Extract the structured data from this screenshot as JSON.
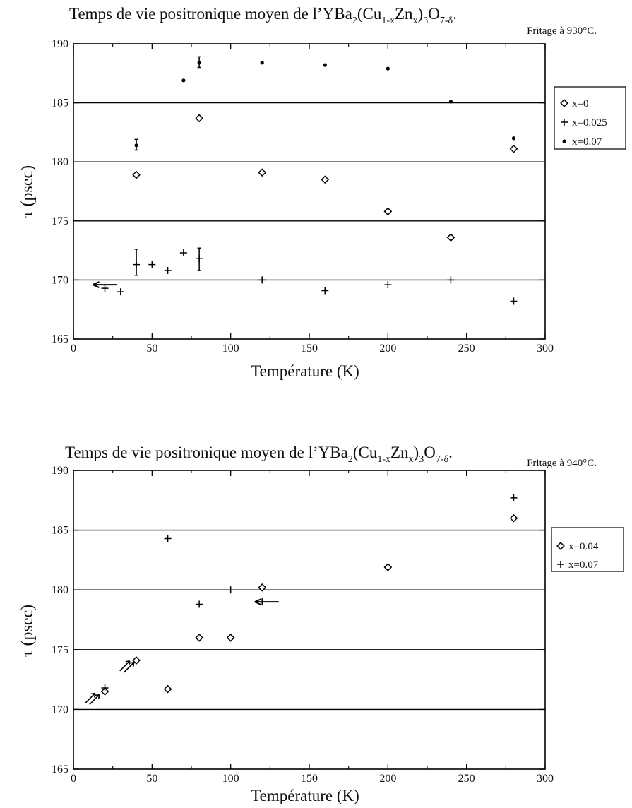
{
  "charts": [
    {
      "title_main": "Temps de vie positronique moyen de l’YBa",
      "title_sub2": "2",
      "title_mid": "(Cu",
      "title_sub1x": "1-x",
      "title_zn": "Zn",
      "title_subx": "x",
      "title_close": ")",
      "title_sub3": "3",
      "title_o": "O",
      "title_sub7": "7-δ",
      "title_dot": ".",
      "subtitle": "Fritage à 930°C.",
      "xlabel": "Température (K)",
      "ylabel": "τ (psec)"
    },
    {
      "title_main": "Temps de vie positronique moyen de l’YBa",
      "title_sub2": "2",
      "title_mid": "(Cu",
      "title_sub1x": "1-x",
      "title_zn": "Zn",
      "title_subx": "x",
      "title_close": ")",
      "title_sub3": "3",
      "title_o": "O",
      "title_sub7": "7-δ",
      "title_dot": ".",
      "subtitle": "Fritage à 940°C.",
      "xlabel": "Température (K)",
      "ylabel": "τ (psec)"
    }
  ],
  "chart_data": [
    {
      "type": "scatter",
      "title": "Temps de vie positronique moyen de l’YBa2(Cu1-xZnx)3O7-δ.",
      "subtitle": "Fritage à 930°C.",
      "xlabel": "Température (K)",
      "ylabel": "τ (psec)",
      "xlim": [
        0,
        300
      ],
      "ylim": [
        165,
        190
      ],
      "xticks": [
        "0",
        "50",
        "100",
        "150",
        "200",
        "250",
        "300"
      ],
      "yticks": [
        "165",
        "170",
        "175",
        "180",
        "185",
        "190"
      ],
      "gridlines_y": [
        170,
        175,
        180,
        185
      ],
      "legend_position": "right",
      "series": [
        {
          "name": "x=0",
          "marker": "diamond",
          "x": [
            40,
            80,
            120,
            160,
            200,
            240,
            280
          ],
          "y": [
            178.9,
            183.7,
            179.1,
            178.5,
            175.8,
            173.6,
            181.1
          ]
        },
        {
          "name": "x=0.025",
          "marker": "plus",
          "x": [
            20,
            30,
            40,
            50,
            60,
            70,
            80,
            120,
            160,
            200,
            240,
            280
          ],
          "y": [
            169.3,
            169.0,
            171.3,
            171.3,
            170.8,
            172.3,
            171.8,
            170.0,
            169.1,
            169.6,
            170.0,
            168.2
          ],
          "error_bars": [
            {
              "x": 40,
              "low": 170.4,
              "high": 172.6
            },
            {
              "x": 80,
              "low": 170.8,
              "high": 172.7
            }
          ]
        },
        {
          "name": "x=0.07",
          "marker": "dot",
          "x": [
            40,
            70,
            80,
            120,
            160,
            200,
            240,
            280
          ],
          "y": [
            181.4,
            186.9,
            188.4,
            188.4,
            188.2,
            187.9,
            185.1,
            182.0
          ],
          "error_bars": [
            {
              "x": 40,
              "low": 181.0,
              "high": 181.9
            },
            {
              "x": 80,
              "low": 188.0,
              "high": 188.9
            }
          ]
        }
      ],
      "arrows": [
        {
          "x": 24,
          "y": 169.6,
          "direction": "left"
        }
      ]
    },
    {
      "type": "scatter",
      "title": "Temps de vie positronique moyen de l’YBa2(Cu1-xZnx)3O7-δ.",
      "subtitle": "Fritage à 940°C.",
      "xlabel": "Température (K)",
      "ylabel": "τ (psec)",
      "xlim": [
        0,
        300
      ],
      "ylim": [
        165,
        190
      ],
      "xticks": [
        "0",
        "50",
        "100",
        "150",
        "200",
        "250",
        "300"
      ],
      "yticks": [
        "165",
        "170",
        "175",
        "180",
        "185",
        "190"
      ],
      "gridlines_y": [
        170,
        175,
        180,
        185
      ],
      "legend_position": "right",
      "series": [
        {
          "name": "x=0.04",
          "marker": "diamond",
          "x": [
            20,
            40,
            60,
            80,
            100,
            120,
            200,
            280
          ],
          "y": [
            171.5,
            174.1,
            171.7,
            176.0,
            176.0,
            180.2,
            181.9,
            186.0
          ]
        },
        {
          "name": "x=0.07",
          "marker": "plus",
          "x": [
            20,
            60,
            80,
            100,
            120,
            280
          ],
          "y": [
            171.8,
            184.3,
            178.8,
            180.0,
            179.0,
            187.7
          ]
        }
      ],
      "arrows": [
        {
          "x": 127,
          "y": 179.0,
          "direction": "left"
        }
      ]
    }
  ]
}
